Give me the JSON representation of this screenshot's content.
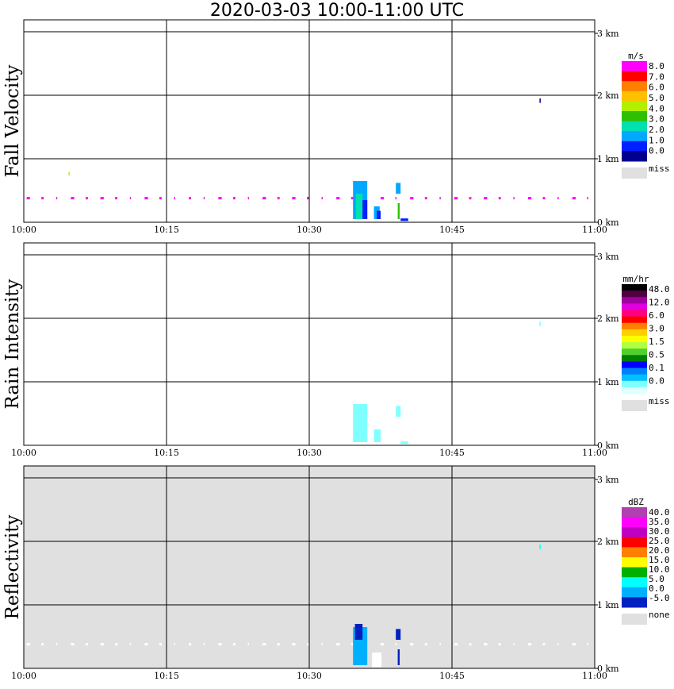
{
  "title": "2020-03-03  10:00-11:00 UTC",
  "chart_data": [
    {
      "type": "heatmap",
      "ylabel": "Fall Velocity",
      "x_ticks": [
        "10:00",
        "10:15",
        "10:30",
        "10:45",
        "11:00"
      ],
      "y_ticks": [
        "0 km",
        "1 km",
        "2 km",
        "3 km"
      ],
      "ylim": [
        0,
        3.2
      ],
      "background": "#ffffff",
      "legend": {
        "unit": "m/s",
        "colors": [
          "#ff00ff",
          "#ff0000",
          "#ff8000",
          "#ffc000",
          "#b0f000",
          "#30c000",
          "#00e0b0",
          "#00a8ff",
          "#0020ff",
          "#000090"
        ],
        "labels": [
          "8.0",
          "7.0",
          "6.0",
          "5.0",
          "4.0",
          "3.0",
          "2.0",
          "1.0",
          "0.0"
        ],
        "miss_label": "miss"
      },
      "echoes": [
        {
          "t0": 34.6,
          "t1": 36.1,
          "h0": 0.05,
          "h1": 0.65,
          "color": "#00a8ff"
        },
        {
          "t0": 34.9,
          "t1": 35.6,
          "h0": 0.05,
          "h1": 0.45,
          "color": "#00e0b0"
        },
        {
          "t0": 35.6,
          "t1": 36.1,
          "h0": 0.05,
          "h1": 0.35,
          "color": "#0020ff"
        },
        {
          "t0": 36.8,
          "t1": 37.4,
          "h0": 0.05,
          "h1": 0.25,
          "color": "#00a8ff"
        },
        {
          "t0": 37.1,
          "t1": 37.5,
          "h0": 0.05,
          "h1": 0.18,
          "color": "#0020ff"
        },
        {
          "t0": 39.1,
          "t1": 39.6,
          "h0": 0.45,
          "h1": 0.62,
          "color": "#00a8ff"
        },
        {
          "t0": 39.3,
          "t1": 39.5,
          "h0": 0.05,
          "h1": 0.3,
          "color": "#30c000"
        },
        {
          "t0": 39.6,
          "t1": 40.4,
          "h0": 0.02,
          "h1": 0.06,
          "color": "#0020ff"
        },
        {
          "t0": 54.2,
          "t1": 54.3,
          "h0": 1.88,
          "h1": 1.95,
          "color": "#000090"
        },
        {
          "t0": 4.7,
          "t1": 4.8,
          "h0": 0.74,
          "h1": 0.79,
          "color": "#b0f000"
        }
      ],
      "band": {
        "h0": 0.36,
        "h1": 0.4,
        "color": "#ff00ff"
      }
    },
    {
      "type": "heatmap",
      "ylabel": "Rain Intensity",
      "x_ticks": [
        "10:00",
        "10:15",
        "10:30",
        "10:45",
        "11:00"
      ],
      "y_ticks": [
        "0 km",
        "1 km",
        "2 km",
        "3 km"
      ],
      "ylim": [
        0,
        3.2
      ],
      "background": "#ffffff",
      "legend": {
        "unit": "mm/hr",
        "colors": [
          "#000000",
          "#500040",
          "#a000a0",
          "#e000e0",
          "#ff0080",
          "#ff0000",
          "#ff8000",
          "#ffd000",
          "#ffff00",
          "#b0ff40",
          "#50d030",
          "#008000",
          "#0000ff",
          "#0080ff",
          "#00c0ff",
          "#80ffff",
          "#e0ffff"
        ],
        "labels": [
          "48.0",
          "12.0",
          "6.0",
          "3.0",
          "1.5",
          "0.5",
          "0.1",
          "0.0"
        ],
        "miss_label": "miss"
      },
      "echoes": [
        {
          "t0": 34.6,
          "t1": 36.1,
          "h0": 0.05,
          "h1": 0.65,
          "color": "#80ffff"
        },
        {
          "t0": 36.8,
          "t1": 37.5,
          "h0": 0.05,
          "h1": 0.25,
          "color": "#80ffff"
        },
        {
          "t0": 39.1,
          "t1": 39.6,
          "h0": 0.45,
          "h1": 0.62,
          "color": "#80ffff"
        },
        {
          "t0": 39.6,
          "t1": 40.4,
          "h0": 0.02,
          "h1": 0.06,
          "color": "#80ffff"
        },
        {
          "t0": 54.2,
          "t1": 54.3,
          "h0": 1.88,
          "h1": 1.95,
          "color": "#80ffff"
        }
      ]
    },
    {
      "type": "heatmap",
      "ylabel": "Reflectivity",
      "x_ticks": [
        "10:00",
        "10:15",
        "10:30",
        "10:45",
        "11:00"
      ],
      "y_ticks": [
        "0 km",
        "1 km",
        "2 km",
        "3 km"
      ],
      "ylim": [
        0,
        3.2
      ],
      "background": "#e0e0e0",
      "legend": {
        "unit": "dBZ",
        "colors": [
          "#b040b0",
          "#ff00ff",
          "#c000c0",
          "#ff0000",
          "#ff8000",
          "#ffff00",
          "#00b000",
          "#00ffff",
          "#00b0ff",
          "#0020c0"
        ],
        "labels": [
          "40.0",
          "35.0",
          "30.0",
          "25.0",
          "20.0",
          "15.0",
          "10.0",
          "5.0",
          "0.0",
          "-5.0"
        ],
        "miss_label": "none"
      },
      "echoes": [
        {
          "t0": 34.6,
          "t1": 36.1,
          "h0": 0.05,
          "h1": 0.65,
          "color": "#00b0ff"
        },
        {
          "t0": 34.8,
          "t1": 35.6,
          "h0": 0.45,
          "h1": 0.7,
          "color": "#0020c0"
        },
        {
          "t0": 36.6,
          "t1": 37.6,
          "h0": 0.02,
          "h1": 0.25,
          "color": "#ffffff"
        },
        {
          "t0": 39.1,
          "t1": 39.6,
          "h0": 0.45,
          "h1": 0.62,
          "color": "#0020c0"
        },
        {
          "t0": 39.3,
          "t1": 39.5,
          "h0": 0.05,
          "h1": 0.3,
          "color": "#0020c0"
        },
        {
          "t0": 54.2,
          "t1": 54.3,
          "h0": 1.88,
          "h1": 1.95,
          "color": "#00ffff"
        }
      ],
      "band": {
        "h0": 0.36,
        "h1": 0.4,
        "color": "#ffffff"
      }
    }
  ]
}
